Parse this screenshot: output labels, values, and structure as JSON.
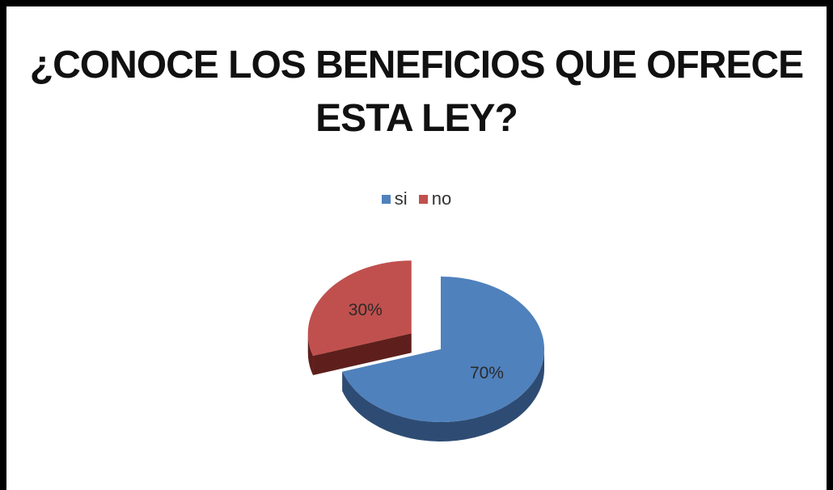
{
  "chart_data": {
    "type": "pie",
    "title": "¿CONOCE LOS BENEFICIOS QUE OFRECE ESTA LEY?",
    "title_lines": [
      "¿CONOCE LOS BENEFICIOS QUE OFRECE",
      "ESTA LEY?"
    ],
    "style": "3d-exploded",
    "legend_position": "top",
    "categories": [
      "si",
      "no"
    ],
    "values": [
      70,
      30
    ],
    "labels": [
      "70%",
      "30%"
    ],
    "colors": [
      "#4F81BD",
      "#C0504D"
    ],
    "side_colors": [
      "#2E4C73",
      "#5E1F1C"
    ]
  }
}
